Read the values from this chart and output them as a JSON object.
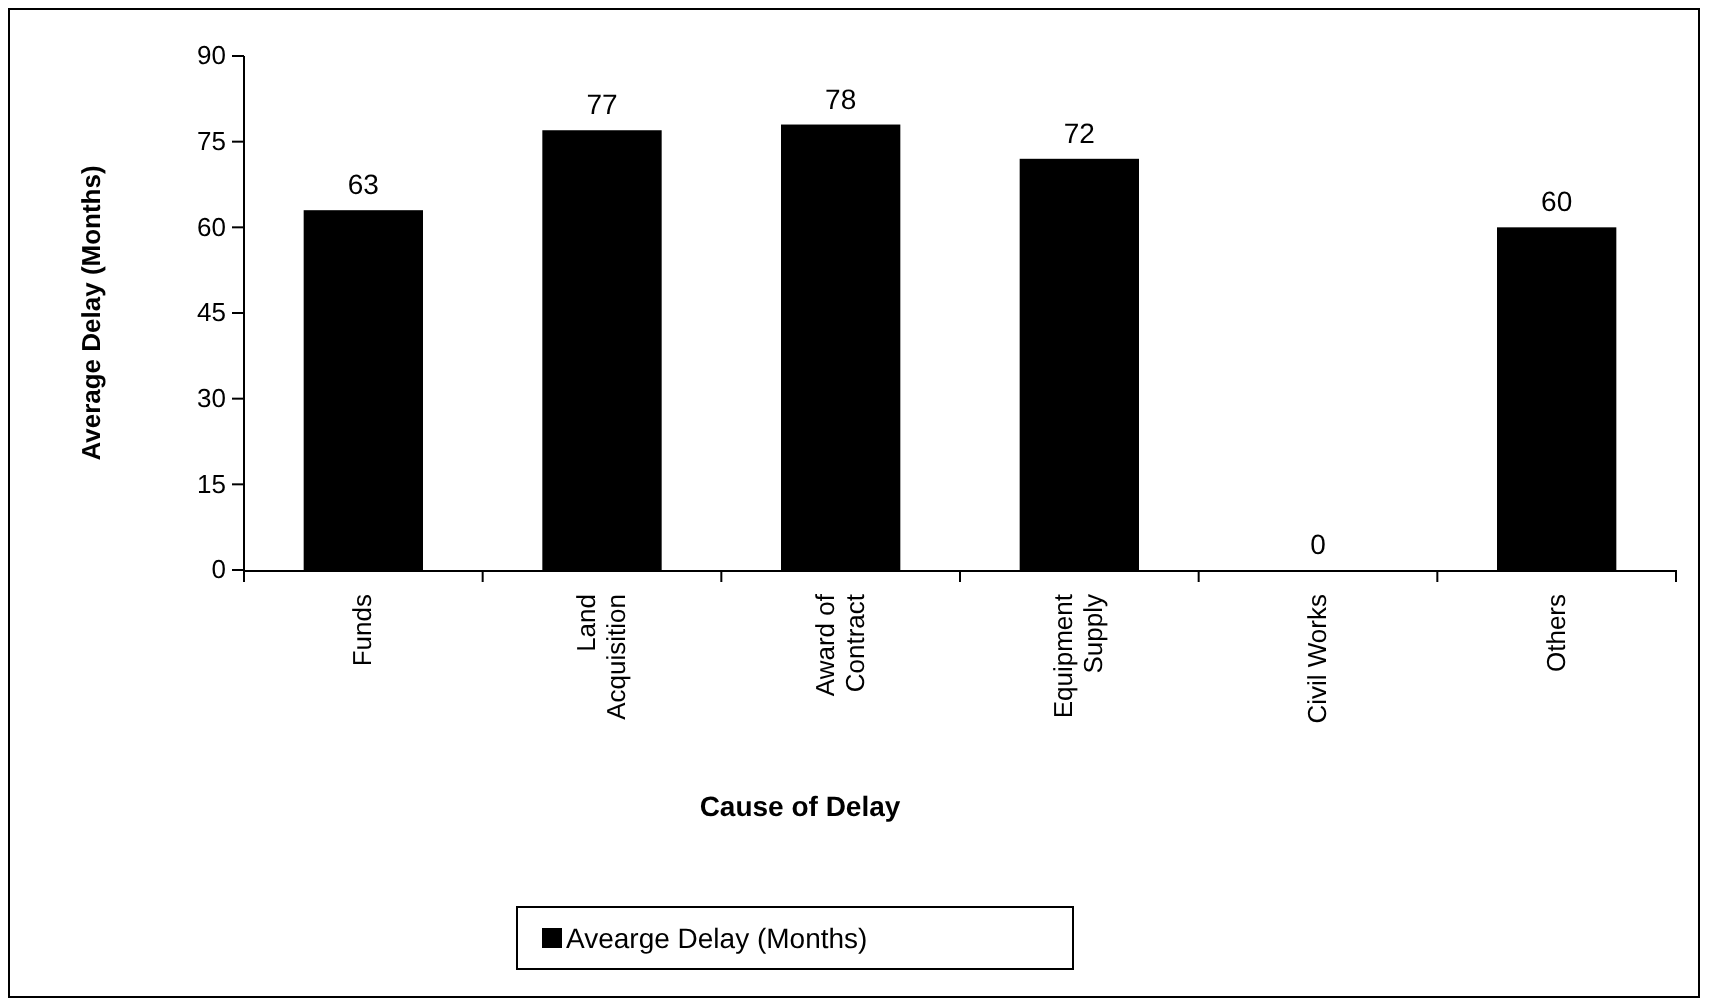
{
  "chart_data": {
    "type": "bar",
    "xlabel": "Cause of Delay",
    "ylabel": "Average Delay (Months)",
    "categories": [
      "Funds",
      "Land Acquisition",
      "Award of Contract",
      "Equipment Supply",
      "Civil Works",
      "Others"
    ],
    "series": [
      {
        "name": "Avearge Delay (Months)",
        "color": "#000000",
        "values": [
          63,
          77,
          78,
          72,
          0,
          60
        ]
      }
    ],
    "ylim": [
      0,
      90
    ],
    "yticks": [
      0,
      15,
      30,
      45,
      60,
      75,
      90
    ],
    "data_labels": true,
    "legend": "bottom"
  }
}
